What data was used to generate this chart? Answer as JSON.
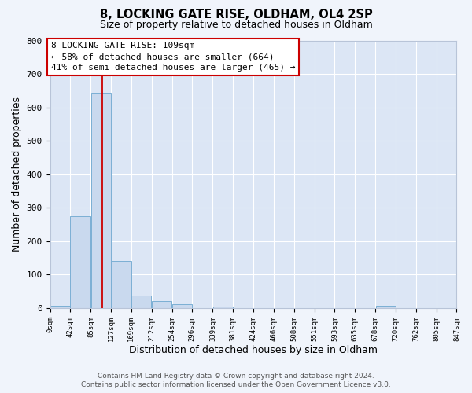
{
  "title": "8, LOCKING GATE RISE, OLDHAM, OL4 2SP",
  "subtitle": "Size of property relative to detached houses in Oldham",
  "xlabel": "Distribution of detached houses by size in Oldham",
  "ylabel": "Number of detached properties",
  "bar_color": "#c9d9ee",
  "bar_edge_color": "#7bafd4",
  "plot_bg_color": "#dce6f5",
  "fig_bg_color": "#f0f4fb",
  "grid_color": "#ffffff",
  "bin_edges": [
    0,
    42,
    85,
    127,
    169,
    212,
    254,
    296,
    339,
    381,
    424,
    466,
    508,
    551,
    593,
    635,
    678,
    720,
    762,
    805,
    847
  ],
  "bin_labels": [
    "0sqm",
    "42sqm",
    "85sqm",
    "127sqm",
    "169sqm",
    "212sqm",
    "254sqm",
    "296sqm",
    "339sqm",
    "381sqm",
    "424sqm",
    "466sqm",
    "508sqm",
    "551sqm",
    "593sqm",
    "635sqm",
    "678sqm",
    "720sqm",
    "762sqm",
    "805sqm",
    "847sqm"
  ],
  "bar_heights": [
    8,
    275,
    644,
    140,
    38,
    20,
    12,
    0,
    5,
    0,
    0,
    0,
    0,
    0,
    0,
    0,
    7,
    0,
    0,
    0
  ],
  "red_line_x": 109,
  "annotation_line1": "8 LOCKING GATE RISE: 109sqm",
  "annotation_line2": "← 58% of detached houses are smaller (664)",
  "annotation_line3": "41% of semi-detached houses are larger (465) →",
  "annotation_box_facecolor": "#ffffff",
  "annotation_box_edgecolor": "#cc0000",
  "ylim": [
    0,
    800
  ],
  "yticks": [
    0,
    100,
    200,
    300,
    400,
    500,
    600,
    700,
    800
  ],
  "footer_line1": "Contains HM Land Registry data © Crown copyright and database right 2024.",
  "footer_line2": "Contains public sector information licensed under the Open Government Licence v3.0."
}
